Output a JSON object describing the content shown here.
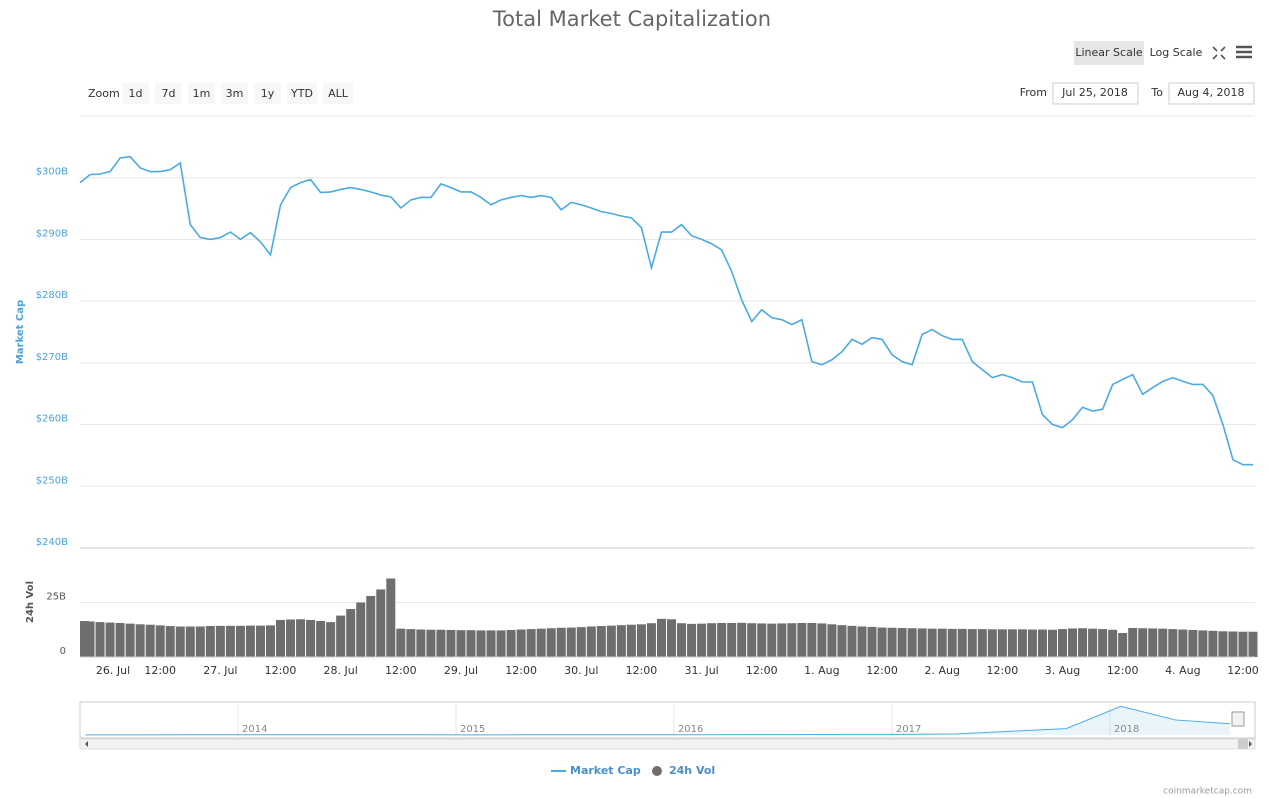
{
  "chart_data": [
    {
      "type": "line",
      "title": "Total Market Capitalization",
      "y_label": "Market Cap",
      "categories": [
        null,
        null,
        "26. Jul",
        null,
        null,
        null,
        null,
        null,
        "12:00",
        null,
        null,
        null,
        null,
        null,
        "27. Jul",
        null,
        null,
        null,
        null,
        null,
        "12:00",
        null,
        null,
        null,
        null,
        null,
        "28. Jul",
        null,
        null,
        null,
        null,
        null,
        "12:00",
        null,
        null,
        null,
        null,
        null,
        "29. Jul",
        null,
        null,
        null,
        null,
        null,
        "12:00",
        null,
        null,
        null,
        null,
        null,
        "30. Jul",
        null,
        null,
        null,
        null,
        null,
        "12:00",
        null,
        null,
        null,
        null,
        null,
        "31. Jul",
        null,
        null,
        null,
        null,
        null,
        "12:00",
        null,
        null,
        null,
        null,
        null,
        "1. Aug",
        null,
        null,
        null,
        null,
        null,
        "12:00",
        null,
        null,
        null,
        null,
        null,
        "2. Aug",
        null,
        null,
        null,
        null,
        null,
        "12:00",
        null,
        null,
        null,
        null,
        null,
        "3. Aug",
        null,
        null,
        null,
        null,
        null,
        "12:00",
        null,
        null,
        null,
        null,
        null,
        "4. Aug",
        null,
        null,
        null,
        null,
        null,
        "12:00",
        null
      ],
      "series": [
        {
          "name": "Market Cap",
          "color": "#4aabe0",
          "values": [
            299.2,
            300.5,
            300.6,
            301,
            303.2,
            303.4,
            301.6,
            301,
            301,
            301.3,
            302.4,
            292.4,
            290.3,
            290,
            290.3,
            291.2,
            290,
            291.1,
            289.6,
            287.5,
            295.6,
            298.4,
            299.2,
            299.7,
            297.6,
            297.7,
            298.1,
            298.4,
            298.1,
            297.7,
            297.2,
            296.9,
            295.1,
            296.4,
            296.8,
            296.8,
            299,
            298.4,
            297.7,
            297.7,
            296.8,
            295.6,
            296.4,
            296.8,
            297.1,
            296.8,
            297.1,
            296.8,
            294.8,
            296,
            295.6,
            295.1,
            294.5,
            294.2,
            293.8,
            293.5,
            291.9,
            285.4,
            291.2,
            291.2,
            292.4,
            290.6,
            290,
            289.3,
            288.3,
            284.8,
            280.2,
            276.7,
            278.6,
            277.3,
            277,
            276.2,
            277,
            270.2,
            269.7,
            270.5,
            271.8,
            273.8,
            273,
            274.1,
            273.8,
            271.3,
            270.2,
            269.7,
            274.6,
            275.4,
            274.4,
            273.8,
            273.8,
            270.2,
            268.9,
            267.6,
            268.1,
            267.6,
            266.9,
            266.9,
            261.6,
            260,
            259.5,
            260.8,
            262.8,
            262.2,
            262.5,
            266.5,
            267.3,
            268.1,
            264.9,
            266,
            267,
            267.6,
            267,
            266.5,
            266.5,
            264.7,
            260,
            254.3,
            253.5,
            253.5
          ]
        }
      ],
      "ylim": [
        240,
        310
      ],
      "yticks": [
        {
          "value": 240,
          "label": "$240B"
        },
        {
          "value": 250,
          "label": "$250B"
        },
        {
          "value": 260,
          "label": "$260B"
        },
        {
          "value": 270,
          "label": "$270B"
        },
        {
          "value": 280,
          "label": "$280B"
        },
        {
          "value": 290,
          "label": "$290B"
        },
        {
          "value": 300,
          "label": "$300B"
        }
      ],
      "grid": true
    },
    {
      "type": "bar",
      "y_label": "24h Vol",
      "series": [
        {
          "name": "24h Vol",
          "color": "#6e6e6e",
          "values": [
            16.5,
            16.3,
            16,
            15.8,
            15.6,
            15.3,
            15,
            14.8,
            14.5,
            14.2,
            14,
            14,
            14,
            14.2,
            14.3,
            14.3,
            14.3,
            14.4,
            14.4,
            14.5,
            17,
            17.2,
            17.3,
            17,
            16.5,
            16,
            19,
            22,
            25,
            28,
            31,
            36,
            13,
            12.8,
            12.6,
            12.5,
            12.5,
            12.4,
            12.3,
            12.3,
            12.2,
            12.2,
            12.2,
            12.4,
            12.6,
            12.8,
            13,
            13.2,
            13.4,
            13.5,
            13.7,
            14,
            14.2,
            14.4,
            14.6,
            14.8,
            15,
            15.5,
            17.5,
            17.3,
            15.5,
            15.2,
            15.3,
            15.5,
            15.6,
            15.6,
            15.7,
            15.5,
            15.4,
            15.3,
            15.4,
            15.5,
            15.6,
            15.6,
            15.4,
            15,
            14.6,
            14.3,
            14,
            13.8,
            13.5,
            13.4,
            13.3,
            13.2,
            13.1,
            13,
            13,
            12.9,
            12.9,
            12.8,
            12.8,
            12.7,
            12.7,
            12.7,
            12.7,
            12.6,
            12.6,
            12.5,
            12.8,
            13.1,
            13.2,
            13,
            12.8,
            12.5,
            11,
            13.3,
            13.2,
            13.1,
            13,
            12.8,
            12.6,
            12.4,
            12.2,
            12,
            11.8,
            11.7,
            11.6,
            11.6
          ]
        }
      ],
      "ylim": [
        0,
        50
      ],
      "yticks": [
        0,
        {
          "value": 25,
          "label": "25B"
        }
      ],
      "grid": true
    },
    {
      "type": "area",
      "x": [
        2013.3,
        2013.55,
        2013.8,
        2014.05,
        2014.3,
        2014.55,
        2014.8,
        2015.05,
        2015.3,
        2015.55,
        2015.8,
        2016.05,
        2016.3,
        2016.55,
        2016.8,
        2017.05,
        2017.3,
        2017.55,
        2017.8,
        2018.05,
        2018.3,
        2018.55
      ],
      "values": [
        2,
        2,
        5,
        8,
        7,
        6,
        5,
        4,
        5,
        6,
        7,
        8,
        9,
        10,
        15,
        18,
        30,
        100,
        170,
        760,
        400,
        300
      ],
      "color": "#4aabe0",
      "xlim": [
        2013.275,
        2018.62
      ],
      "ylim": [
        0,
        850
      ],
      "xticks": [
        2014,
        2015,
        2016,
        2017,
        2018
      ]
    }
  ],
  "ui": {
    "zoom_label": "Zoom",
    "zoom_buttons": [
      "1d",
      "7d",
      "1m",
      "3m",
      "1y",
      "YTD",
      "ALL"
    ],
    "scale_buttons": [
      "Linear Scale",
      "Log Scale"
    ],
    "from_label": "From",
    "from_date": "Jul 25, 2018",
    "to_label": "To",
    "to_date": "Aug 4, 2018",
    "credit": "coinmarketcap.com"
  }
}
